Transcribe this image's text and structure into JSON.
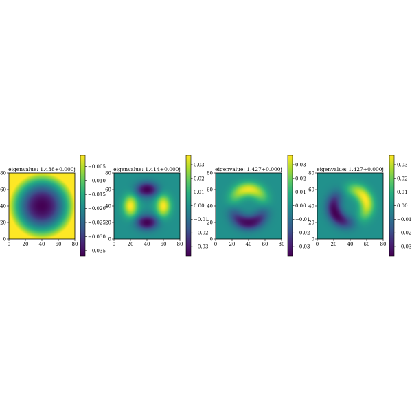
{
  "chart_data": [
    {
      "type": "heatmap",
      "title": "eigenvalue: 1.438+0.000j",
      "mode": "radial",
      "xlim": [
        0,
        80
      ],
      "ylim": [
        0,
        80
      ],
      "xticks": [
        "0",
        "20",
        "40",
        "60",
        "80"
      ],
      "yticks": [
        "0",
        "20",
        "40",
        "60",
        "80"
      ],
      "colorbar": {
        "min": -0.037,
        "max": -0.001,
        "ticks": [
          {
            "value": -0.005,
            "label": "−0.005"
          },
          {
            "value": -0.01,
            "label": "−0.010"
          },
          {
            "value": -0.015,
            "label": "−0.015"
          },
          {
            "value": -0.02,
            "label": "−0.020"
          },
          {
            "value": -0.025,
            "label": "−0.025"
          },
          {
            "value": -0.03,
            "label": "−0.030"
          },
          {
            "value": -0.035,
            "label": "−0.035"
          }
        ]
      },
      "colormap": "viridis"
    },
    {
      "type": "heatmap",
      "title": "eigenvalue: 1.414+0.000j",
      "mode": "quadrupole",
      "xlim": [
        0,
        80
      ],
      "ylim": [
        0,
        80
      ],
      "xticks": [
        "0",
        "20",
        "40",
        "60",
        "80"
      ],
      "yticks": [
        "0",
        "20",
        "40",
        "60",
        "80"
      ],
      "colorbar": {
        "min": -0.037,
        "max": 0.037,
        "ticks": [
          {
            "value": 0.03,
            "label": "0.03"
          },
          {
            "value": 0.02,
            "label": "0.02"
          },
          {
            "value": 0.01,
            "label": "0.01"
          },
          {
            "value": 0.0,
            "label": "0.00"
          },
          {
            "value": -0.01,
            "label": "−0.01"
          },
          {
            "value": -0.02,
            "label": "−0.02"
          },
          {
            "value": -0.03,
            "label": "−0.03"
          }
        ]
      },
      "colormap": "viridis"
    },
    {
      "type": "heatmap",
      "title": "eigenvalue: 1.427+0.000j",
      "mode": "dipole-vertical",
      "xlim": [
        0,
        80
      ],
      "ylim": [
        0,
        80
      ],
      "xticks": [
        "0",
        "20",
        "40",
        "60",
        "80"
      ],
      "yticks": [
        "0",
        "20",
        "40",
        "60",
        "80"
      ],
      "colorbar": {
        "min": -0.037,
        "max": 0.037,
        "ticks": [
          {
            "value": 0.03,
            "label": "0.03"
          },
          {
            "value": 0.02,
            "label": "0.02"
          },
          {
            "value": 0.01,
            "label": "0.01"
          },
          {
            "value": 0.0,
            "label": "0.00"
          },
          {
            "value": -0.01,
            "label": "−0.01"
          },
          {
            "value": -0.02,
            "label": "−0.02"
          },
          {
            "value": -0.03,
            "label": "−0.03"
          }
        ]
      },
      "colormap": "viridis"
    },
    {
      "type": "heatmap",
      "title": "eigenvalue: 1.427+0.000j",
      "mode": "dipole-diagonal",
      "xlim": [
        0,
        80
      ],
      "ylim": [
        0,
        80
      ],
      "xticks": [
        "0",
        "20",
        "40",
        "60",
        "80"
      ],
      "yticks": [
        "0",
        "20",
        "40",
        "60",
        "80"
      ],
      "colorbar": {
        "min": -0.037,
        "max": 0.037,
        "ticks": [
          {
            "value": 0.03,
            "label": "0.03"
          },
          {
            "value": 0.02,
            "label": "0.02"
          },
          {
            "value": 0.01,
            "label": "0.01"
          },
          {
            "value": 0.0,
            "label": "0.00"
          },
          {
            "value": -0.01,
            "label": "−0.01"
          },
          {
            "value": -0.02,
            "label": "−0.02"
          },
          {
            "value": -0.03,
            "label": "−0.03"
          }
        ]
      },
      "colormap": "viridis"
    }
  ]
}
